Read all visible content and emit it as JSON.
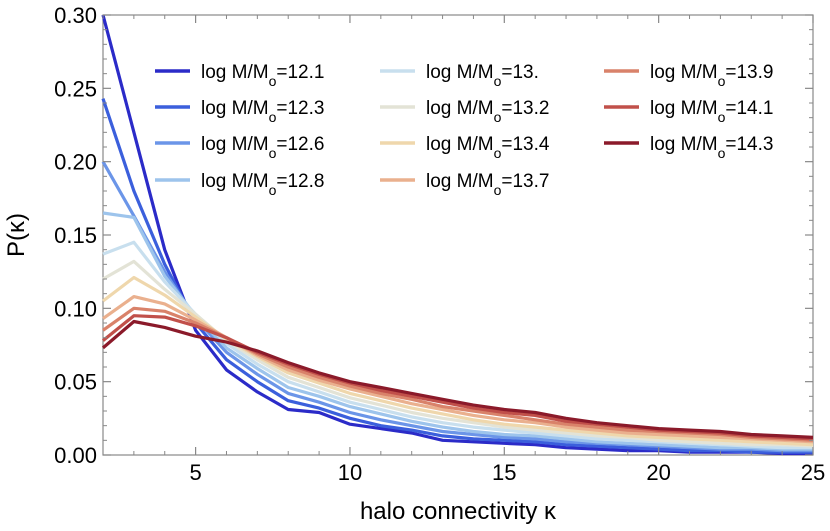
{
  "chart_data": {
    "type": "line",
    "xlabel": "halo connectivity κ",
    "ylabel": "P(κ)",
    "xlim": [
      2,
      25
    ],
    "ylim": [
      0,
      0.3
    ],
    "xticks": [
      5,
      10,
      15,
      20,
      25
    ],
    "yticks": [
      0.0,
      0.05,
      0.1,
      0.15,
      0.2,
      0.25,
      0.3
    ],
    "ytick_labels": [
      "0.00",
      "0.05",
      "0.10",
      "0.15",
      "0.20",
      "0.25",
      "0.30"
    ],
    "grid": false,
    "legend_position": "top",
    "legend_prefix": "log M/M",
    "legend_subscript": "o",
    "x": [
      2,
      3,
      4,
      5,
      6,
      7,
      8,
      9,
      10,
      11,
      12,
      13,
      14,
      15,
      16,
      17,
      18,
      19,
      20,
      21,
      22,
      23,
      24,
      25
    ],
    "series": [
      {
        "name": "=12.1",
        "color": "#2b2bc8",
        "values": [
          0.3,
          0.22,
          0.14,
          0.085,
          0.058,
          0.043,
          0.031,
          0.029,
          0.021,
          0.018,
          0.015,
          0.01,
          0.009,
          0.008,
          0.007,
          0.005,
          0.004,
          0.003,
          0.003,
          0.002,
          0.002,
          0.002,
          0.001,
          0.001
        ]
      },
      {
        "name": "=12.3",
        "color": "#3b5fdc",
        "values": [
          0.243,
          0.18,
          0.13,
          0.09,
          0.065,
          0.05,
          0.037,
          0.032,
          0.025,
          0.02,
          0.017,
          0.013,
          0.011,
          0.01,
          0.009,
          0.007,
          0.006,
          0.005,
          0.004,
          0.003,
          0.003,
          0.002,
          0.002,
          0.002
        ]
      },
      {
        "name": "=12.6",
        "color": "#6b95e8",
        "values": [
          0.2,
          0.163,
          0.125,
          0.093,
          0.07,
          0.055,
          0.042,
          0.036,
          0.029,
          0.024,
          0.02,
          0.016,
          0.014,
          0.012,
          0.011,
          0.009,
          0.008,
          0.007,
          0.006,
          0.005,
          0.004,
          0.004,
          0.003,
          0.003
        ]
      },
      {
        "name": "=12.8",
        "color": "#9dc4ec",
        "values": [
          0.165,
          0.162,
          0.122,
          0.095,
          0.073,
          0.059,
          0.046,
          0.04,
          0.033,
          0.028,
          0.023,
          0.019,
          0.016,
          0.014,
          0.013,
          0.011,
          0.009,
          0.008,
          0.007,
          0.006,
          0.005,
          0.005,
          0.004,
          0.004
        ]
      },
      {
        "name": "=13.",
        "color": "#c8dfee",
        "values": [
          0.137,
          0.145,
          0.118,
          0.096,
          0.076,
          0.062,
          0.05,
          0.043,
          0.036,
          0.031,
          0.026,
          0.022,
          0.019,
          0.017,
          0.015,
          0.013,
          0.011,
          0.01,
          0.009,
          0.008,
          0.007,
          0.006,
          0.005,
          0.005
        ]
      },
      {
        "name": "=13.2",
        "color": "#e3e3d6",
        "values": [
          0.12,
          0.132,
          0.113,
          0.096,
          0.078,
          0.065,
          0.053,
          0.046,
          0.039,
          0.034,
          0.029,
          0.025,
          0.022,
          0.019,
          0.017,
          0.015,
          0.013,
          0.012,
          0.01,
          0.009,
          0.008,
          0.007,
          0.007,
          0.006
        ]
      },
      {
        "name": "=13.4",
        "color": "#efd7ac",
        "values": [
          0.105,
          0.121,
          0.109,
          0.094,
          0.079,
          0.067,
          0.056,
          0.049,
          0.042,
          0.037,
          0.032,
          0.028,
          0.024,
          0.021,
          0.019,
          0.017,
          0.015,
          0.013,
          0.012,
          0.011,
          0.01,
          0.009,
          0.008,
          0.007
        ]
      },
      {
        "name": "=13.7",
        "color": "#eab08e",
        "values": [
          0.093,
          0.108,
          0.103,
          0.092,
          0.08,
          0.068,
          0.058,
          0.051,
          0.045,
          0.04,
          0.035,
          0.031,
          0.027,
          0.024,
          0.022,
          0.019,
          0.017,
          0.015,
          0.014,
          0.013,
          0.012,
          0.011,
          0.01,
          0.009
        ]
      },
      {
        "name": "=13.9",
        "color": "#d9826a",
        "values": [
          0.085,
          0.1,
          0.098,
          0.09,
          0.08,
          0.069,
          0.06,
          0.053,
          0.047,
          0.042,
          0.038,
          0.033,
          0.03,
          0.027,
          0.024,
          0.021,
          0.019,
          0.017,
          0.016,
          0.015,
          0.014,
          0.012,
          0.011,
          0.01
        ]
      },
      {
        "name": "=14.1",
        "color": "#c1504a",
        "values": [
          0.078,
          0.095,
          0.094,
          0.088,
          0.08,
          0.07,
          0.062,
          0.055,
          0.049,
          0.044,
          0.04,
          0.036,
          0.032,
          0.029,
          0.027,
          0.023,
          0.021,
          0.019,
          0.017,
          0.016,
          0.015,
          0.013,
          0.012,
          0.011
        ]
      },
      {
        "name": "=14.3",
        "color": "#8b1a2a",
        "values": [
          0.073,
          0.091,
          0.087,
          0.081,
          0.077,
          0.071,
          0.063,
          0.056,
          0.05,
          0.046,
          0.042,
          0.038,
          0.034,
          0.031,
          0.029,
          0.025,
          0.022,
          0.02,
          0.018,
          0.017,
          0.016,
          0.014,
          0.013,
          0.012
        ]
      }
    ]
  }
}
